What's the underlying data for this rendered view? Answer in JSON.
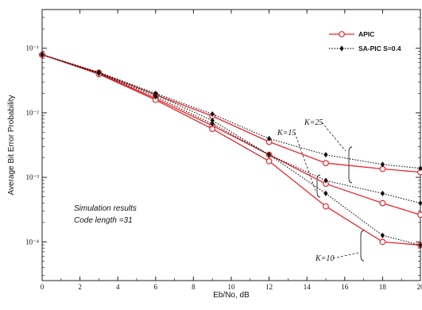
{
  "chart_data": {
    "type": "line",
    "xlabel": "Eb/No, dB",
    "ylabel": "Average Bit Error Probability",
    "xlim": [
      0,
      20
    ],
    "ylim_log10": [
      -4.6,
      -0.4
    ],
    "y_scale": "log",
    "grid": false,
    "legend_position": "top-right",
    "x_ticks": [
      "0",
      "2",
      "4",
      "6",
      "8",
      "10",
      "12",
      "14",
      "16",
      "18",
      "20"
    ],
    "y_ticks": [
      {
        "log10": -1,
        "label": "10⁻¹"
      },
      {
        "log10": -2,
        "label": "10⁻²"
      },
      {
        "log10": -3,
        "label": "10⁻³"
      },
      {
        "log10": -4,
        "label": "10⁻⁴"
      }
    ],
    "series": [
      {
        "name": "APIC",
        "color": "#e8262b",
        "marker": "circle-open",
        "style": "solid",
        "curves": [
          {
            "x": [
              0,
              3,
              6,
              9,
              12,
              15,
              18,
              20
            ],
            "y_log10": [
              -1.1,
              -1.38,
              -1.72,
              -2.05,
              -2.45,
              -2.78,
              -2.87,
              -2.92
            ]
          },
          {
            "x": [
              0,
              3,
              6,
              9,
              12,
              15,
              18,
              20
            ],
            "y_log10": [
              -1.1,
              -1.39,
              -1.78,
              -2.2,
              -2.65,
              -3.1,
              -3.4,
              -3.58
            ]
          },
          {
            "x": [
              0,
              3,
              6,
              9,
              12,
              15,
              18,
              20
            ],
            "y_log10": [
              -1.1,
              -1.4,
              -1.8,
              -2.25,
              -2.75,
              -3.45,
              -4.0,
              -4.05
            ]
          }
        ]
      },
      {
        "name": "SA-PIC S=0.4",
        "color": "#111111",
        "marker": "diamond-filled",
        "style": "dotted",
        "curves": [
          {
            "x": [
              0,
              3,
              6,
              9,
              12,
              15,
              18,
              20
            ],
            "y_log10": [
              -1.1,
              -1.37,
              -1.7,
              -2.02,
              -2.4,
              -2.65,
              -2.8,
              -2.86
            ]
          },
          {
            "x": [
              0,
              3,
              6,
              9,
              12,
              15,
              18,
              20
            ],
            "y_log10": [
              -1.1,
              -1.38,
              -1.72,
              -2.12,
              -2.65,
              -3.05,
              -3.25,
              -3.4
            ]
          },
          {
            "x": [
              0,
              3,
              6,
              9,
              12,
              15,
              18,
              20
            ],
            "y_log10": [
              -1.1,
              -1.39,
              -1.75,
              -2.17,
              -2.65,
              -3.25,
              -3.9,
              -4.05
            ]
          }
        ]
      }
    ],
    "annotations": [
      "K=15",
      "K=25",
      "K=10"
    ],
    "notes": [
      "Simulation results",
      "Code length =31"
    ]
  }
}
